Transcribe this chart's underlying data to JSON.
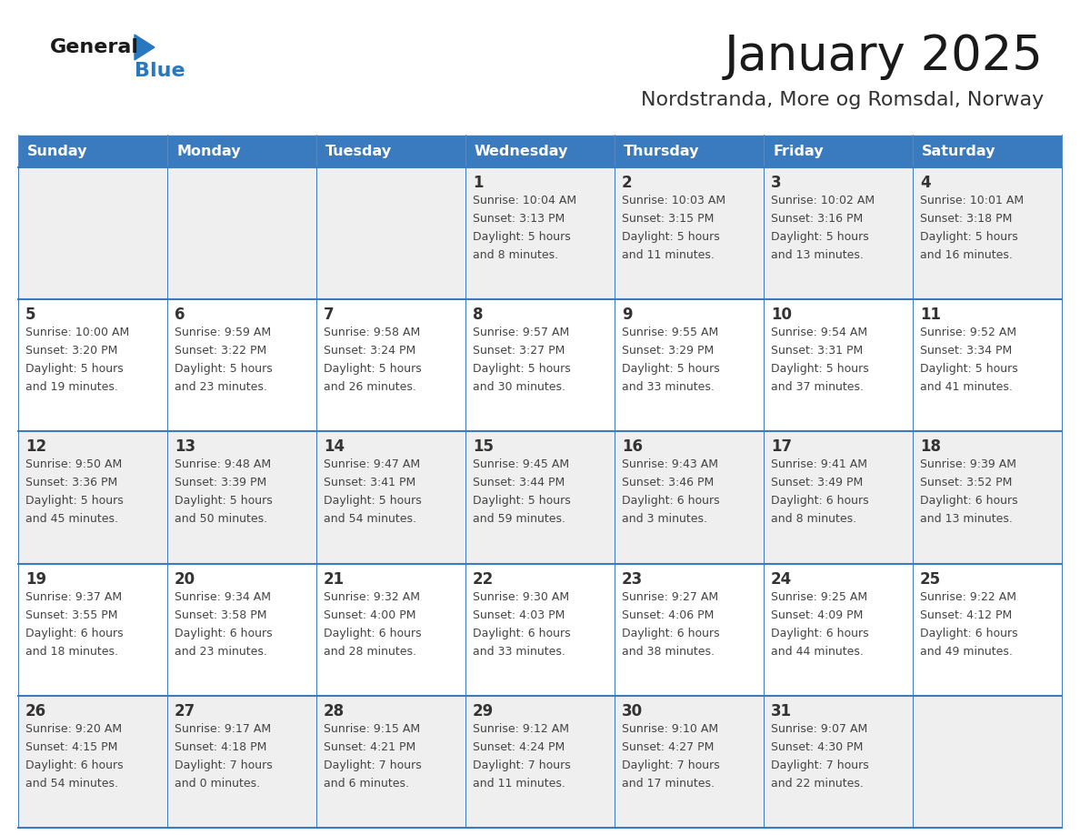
{
  "title": "January 2025",
  "subtitle": "Nordstranda, More og Romsdal, Norway",
  "days_of_week": [
    "Sunday",
    "Monday",
    "Tuesday",
    "Wednesday",
    "Thursday",
    "Friday",
    "Saturday"
  ],
  "header_bg": "#3a7abf",
  "header_text": "#ffffff",
  "cell_bg_odd": "#efefef",
  "cell_bg_even": "#ffffff",
  "cell_border": "#3a7abf",
  "day_text_color": "#333333",
  "info_text_color": "#444444",
  "title_color": "#1a1a1a",
  "subtitle_color": "#333333",
  "logo_general_color": "#1a1a1a",
  "logo_blue_color": "#2878c0",
  "weeks": [
    {
      "row": 0,
      "days": [
        {
          "col": 0,
          "day": "",
          "sunrise": "",
          "sunset": "",
          "daylight": ""
        },
        {
          "col": 1,
          "day": "",
          "sunrise": "",
          "sunset": "",
          "daylight": ""
        },
        {
          "col": 2,
          "day": "",
          "sunrise": "",
          "sunset": "",
          "daylight": ""
        },
        {
          "col": 3,
          "day": "1",
          "sunrise": "Sunrise: 10:04 AM",
          "sunset": "Sunset: 3:13 PM",
          "daylight": "Daylight: 5 hours\nand 8 minutes."
        },
        {
          "col": 4,
          "day": "2",
          "sunrise": "Sunrise: 10:03 AM",
          "sunset": "Sunset: 3:15 PM",
          "daylight": "Daylight: 5 hours\nand 11 minutes."
        },
        {
          "col": 5,
          "day": "3",
          "sunrise": "Sunrise: 10:02 AM",
          "sunset": "Sunset: 3:16 PM",
          "daylight": "Daylight: 5 hours\nand 13 minutes."
        },
        {
          "col": 6,
          "day": "4",
          "sunrise": "Sunrise: 10:01 AM",
          "sunset": "Sunset: 3:18 PM",
          "daylight": "Daylight: 5 hours\nand 16 minutes."
        }
      ]
    },
    {
      "row": 1,
      "days": [
        {
          "col": 0,
          "day": "5",
          "sunrise": "Sunrise: 10:00 AM",
          "sunset": "Sunset: 3:20 PM",
          "daylight": "Daylight: 5 hours\nand 19 minutes."
        },
        {
          "col": 1,
          "day": "6",
          "sunrise": "Sunrise: 9:59 AM",
          "sunset": "Sunset: 3:22 PM",
          "daylight": "Daylight: 5 hours\nand 23 minutes."
        },
        {
          "col": 2,
          "day": "7",
          "sunrise": "Sunrise: 9:58 AM",
          "sunset": "Sunset: 3:24 PM",
          "daylight": "Daylight: 5 hours\nand 26 minutes."
        },
        {
          "col": 3,
          "day": "8",
          "sunrise": "Sunrise: 9:57 AM",
          "sunset": "Sunset: 3:27 PM",
          "daylight": "Daylight: 5 hours\nand 30 minutes."
        },
        {
          "col": 4,
          "day": "9",
          "sunrise": "Sunrise: 9:55 AM",
          "sunset": "Sunset: 3:29 PM",
          "daylight": "Daylight: 5 hours\nand 33 minutes."
        },
        {
          "col": 5,
          "day": "10",
          "sunrise": "Sunrise: 9:54 AM",
          "sunset": "Sunset: 3:31 PM",
          "daylight": "Daylight: 5 hours\nand 37 minutes."
        },
        {
          "col": 6,
          "day": "11",
          "sunrise": "Sunrise: 9:52 AM",
          "sunset": "Sunset: 3:34 PM",
          "daylight": "Daylight: 5 hours\nand 41 minutes."
        }
      ]
    },
    {
      "row": 2,
      "days": [
        {
          "col": 0,
          "day": "12",
          "sunrise": "Sunrise: 9:50 AM",
          "sunset": "Sunset: 3:36 PM",
          "daylight": "Daylight: 5 hours\nand 45 minutes."
        },
        {
          "col": 1,
          "day": "13",
          "sunrise": "Sunrise: 9:48 AM",
          "sunset": "Sunset: 3:39 PM",
          "daylight": "Daylight: 5 hours\nand 50 minutes."
        },
        {
          "col": 2,
          "day": "14",
          "sunrise": "Sunrise: 9:47 AM",
          "sunset": "Sunset: 3:41 PM",
          "daylight": "Daylight: 5 hours\nand 54 minutes."
        },
        {
          "col": 3,
          "day": "15",
          "sunrise": "Sunrise: 9:45 AM",
          "sunset": "Sunset: 3:44 PM",
          "daylight": "Daylight: 5 hours\nand 59 minutes."
        },
        {
          "col": 4,
          "day": "16",
          "sunrise": "Sunrise: 9:43 AM",
          "sunset": "Sunset: 3:46 PM",
          "daylight": "Daylight: 6 hours\nand 3 minutes."
        },
        {
          "col": 5,
          "day": "17",
          "sunrise": "Sunrise: 9:41 AM",
          "sunset": "Sunset: 3:49 PM",
          "daylight": "Daylight: 6 hours\nand 8 minutes."
        },
        {
          "col": 6,
          "day": "18",
          "sunrise": "Sunrise: 9:39 AM",
          "sunset": "Sunset: 3:52 PM",
          "daylight": "Daylight: 6 hours\nand 13 minutes."
        }
      ]
    },
    {
      "row": 3,
      "days": [
        {
          "col": 0,
          "day": "19",
          "sunrise": "Sunrise: 9:37 AM",
          "sunset": "Sunset: 3:55 PM",
          "daylight": "Daylight: 6 hours\nand 18 minutes."
        },
        {
          "col": 1,
          "day": "20",
          "sunrise": "Sunrise: 9:34 AM",
          "sunset": "Sunset: 3:58 PM",
          "daylight": "Daylight: 6 hours\nand 23 minutes."
        },
        {
          "col": 2,
          "day": "21",
          "sunrise": "Sunrise: 9:32 AM",
          "sunset": "Sunset: 4:00 PM",
          "daylight": "Daylight: 6 hours\nand 28 minutes."
        },
        {
          "col": 3,
          "day": "22",
          "sunrise": "Sunrise: 9:30 AM",
          "sunset": "Sunset: 4:03 PM",
          "daylight": "Daylight: 6 hours\nand 33 minutes."
        },
        {
          "col": 4,
          "day": "23",
          "sunrise": "Sunrise: 9:27 AM",
          "sunset": "Sunset: 4:06 PM",
          "daylight": "Daylight: 6 hours\nand 38 minutes."
        },
        {
          "col": 5,
          "day": "24",
          "sunrise": "Sunrise: 9:25 AM",
          "sunset": "Sunset: 4:09 PM",
          "daylight": "Daylight: 6 hours\nand 44 minutes."
        },
        {
          "col": 6,
          "day": "25",
          "sunrise": "Sunrise: 9:22 AM",
          "sunset": "Sunset: 4:12 PM",
          "daylight": "Daylight: 6 hours\nand 49 minutes."
        }
      ]
    },
    {
      "row": 4,
      "days": [
        {
          "col": 0,
          "day": "26",
          "sunrise": "Sunrise: 9:20 AM",
          "sunset": "Sunset: 4:15 PM",
          "daylight": "Daylight: 6 hours\nand 54 minutes."
        },
        {
          "col": 1,
          "day": "27",
          "sunrise": "Sunrise: 9:17 AM",
          "sunset": "Sunset: 4:18 PM",
          "daylight": "Daylight: 7 hours\nand 0 minutes."
        },
        {
          "col": 2,
          "day": "28",
          "sunrise": "Sunrise: 9:15 AM",
          "sunset": "Sunset: 4:21 PM",
          "daylight": "Daylight: 7 hours\nand 6 minutes."
        },
        {
          "col": 3,
          "day": "29",
          "sunrise": "Sunrise: 9:12 AM",
          "sunset": "Sunset: 4:24 PM",
          "daylight": "Daylight: 7 hours\nand 11 minutes."
        },
        {
          "col": 4,
          "day": "30",
          "sunrise": "Sunrise: 9:10 AM",
          "sunset": "Sunset: 4:27 PM",
          "daylight": "Daylight: 7 hours\nand 17 minutes."
        },
        {
          "col": 5,
          "day": "31",
          "sunrise": "Sunrise: 9:07 AM",
          "sunset": "Sunset: 4:30 PM",
          "daylight": "Daylight: 7 hours\nand 22 minutes."
        },
        {
          "col": 6,
          "day": "",
          "sunrise": "",
          "sunset": "",
          "daylight": ""
        }
      ]
    }
  ]
}
